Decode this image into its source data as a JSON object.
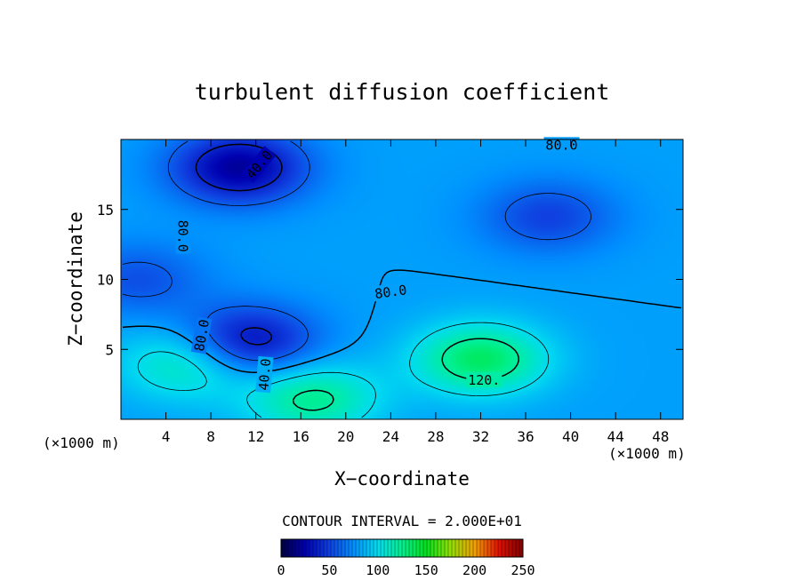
{
  "chart_data": {
    "type": "heatmap",
    "title": "turbulent diffusion coefficient",
    "xlabel": "X−coordinate",
    "ylabel": "Z−coordinate",
    "x_unit_left": "(×1000 m)",
    "x_unit_right": "(×1000 m)",
    "xlim": [
      0,
      50
    ],
    "ylim": [
      0,
      20
    ],
    "x_ticks": [
      4,
      8,
      12,
      16,
      20,
      24,
      28,
      32,
      36,
      40,
      44,
      48
    ],
    "x_tick_labels": [
      "4",
      "8",
      "12",
      "16",
      "20",
      "24",
      "28",
      "32",
      "36",
      "40",
      "44",
      "48"
    ],
    "y_ticks": [
      5,
      10,
      15
    ],
    "y_tick_labels": [
      "5",
      "10",
      "15"
    ],
    "contour_interval_text": "CONTOUR INTERVAL = 2.000E+01",
    "contour_labels": [
      {
        "text": "80.0",
        "x": 39.2,
        "z": 19.6,
        "angle": 0
      },
      {
        "text": "40.0",
        "x": 12.3,
        "z": 18.2,
        "angle": -50
      },
      {
        "text": "80.0",
        "x": 5.5,
        "z": 13.1,
        "angle": 90
      },
      {
        "text": "80.0",
        "x": 24.0,
        "z": 9.1,
        "angle": -8
      },
      {
        "text": "80.0",
        "x": 7.2,
        "z": 6.0,
        "angle": -80
      },
      {
        "text": "40.0",
        "x": 12.8,
        "z": 3.2,
        "angle": -85
      },
      {
        "text": "120.",
        "x": 32.3,
        "z": 2.8,
        "angle": 0
      }
    ],
    "colorbar": {
      "min": 0,
      "max": 250,
      "ticks": [
        0,
        50,
        100,
        150,
        200,
        250
      ],
      "tick_labels": [
        "0",
        "50",
        "100",
        "150",
        "200",
        "250"
      ]
    },
    "field_summary": {
      "background_level": 80,
      "minimum_level": 20,
      "maximum_level": 135,
      "features": [
        {
          "kind": "max",
          "x": 32.0,
          "z": 4.3,
          "value": 135
        },
        {
          "kind": "min",
          "x": 10.5,
          "z": 18.0,
          "value": 20
        },
        {
          "kind": "min",
          "x": 11.2,
          "z": 5.5,
          "value": 25
        },
        {
          "kind": "min",
          "x": 1.5,
          "z": 10.0,
          "value": 55
        },
        {
          "kind": "min",
          "x": 38.0,
          "z": 14.5,
          "value": 50
        },
        {
          "kind": "max",
          "x": 6.0,
          "z": 4.0,
          "value": 120
        },
        {
          "kind": "max",
          "x": 17.0,
          "z": 1.5,
          "value": 125
        }
      ]
    },
    "colors": {
      "palette": [
        "#000040",
        "#0000b0",
        "#1040e0",
        "#0090ff",
        "#00dcf0",
        "#00f090",
        "#00e020",
        "#90e000",
        "#f0a000",
        "#e01000",
        "#800000"
      ]
    },
    "grid": false,
    "legend": "bottom"
  }
}
